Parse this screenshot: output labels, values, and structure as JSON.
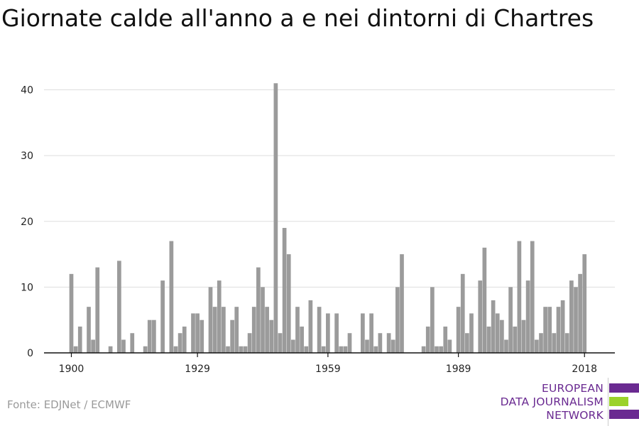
{
  "title": "Giornate calde all'anno a e nei dintorni di Chartres",
  "source": "Fonte: EDJNet / ECMWF",
  "logo": {
    "line1": "EUROPEAN",
    "line2": "DATA JOURNALISM",
    "line3": "NETWORK",
    "purple": "#6a2a91",
    "green": "#9bd22a"
  },
  "chart_data": {
    "type": "bar",
    "title": "Giornate calde all'anno a e nei dintorni di Chartres",
    "xlabel": "",
    "ylabel": "",
    "bar_color": "#9b9b9b",
    "grid": true,
    "ylim": [
      0,
      43
    ],
    "yticks": [
      0,
      10,
      20,
      30,
      40
    ],
    "xticks": [
      1900,
      1929,
      1959,
      1989,
      2018
    ],
    "x": [
      1900,
      1901,
      1902,
      1903,
      1904,
      1905,
      1906,
      1907,
      1908,
      1909,
      1910,
      1911,
      1912,
      1913,
      1914,
      1915,
      1916,
      1917,
      1918,
      1919,
      1920,
      1921,
      1922,
      1923,
      1924,
      1925,
      1926,
      1927,
      1928,
      1929,
      1930,
      1931,
      1932,
      1933,
      1934,
      1935,
      1936,
      1937,
      1938,
      1939,
      1940,
      1941,
      1942,
      1943,
      1944,
      1945,
      1946,
      1947,
      1948,
      1949,
      1950,
      1951,
      1952,
      1953,
      1954,
      1955,
      1956,
      1957,
      1958,
      1959,
      1960,
      1961,
      1962,
      1963,
      1964,
      1965,
      1966,
      1967,
      1968,
      1969,
      1970,
      1971,
      1972,
      1973,
      1974,
      1975,
      1976,
      1977,
      1978,
      1979,
      1980,
      1981,
      1982,
      1983,
      1984,
      1985,
      1986,
      1987,
      1988,
      1989,
      1990,
      1991,
      1992,
      1993,
      1994,
      1995,
      1996,
      1997,
      1998,
      1999,
      2000,
      2001,
      2002,
      2003,
      2004,
      2005,
      2006,
      2007,
      2008,
      2009,
      2010,
      2011,
      2012,
      2013,
      2014,
      2015,
      2016,
      2017,
      2018
    ],
    "values": [
      12,
      1,
      4,
      0,
      7,
      2,
      13,
      0,
      0,
      1,
      0,
      14,
      2,
      0,
      3,
      0,
      0,
      1,
      5,
      5,
      0,
      11,
      0,
      17,
      1,
      3,
      4,
      0,
      6,
      6,
      5,
      0,
      10,
      7,
      11,
      7,
      1,
      5,
      7,
      1,
      1,
      3,
      7,
      13,
      10,
      7,
      5,
      41,
      3,
      19,
      15,
      2,
      7,
      4,
      1,
      8,
      0,
      7,
      1,
      6,
      0,
      6,
      1,
      1,
      3,
      0,
      0,
      6,
      2,
      6,
      1,
      3,
      0,
      3,
      2,
      10,
      15,
      0,
      0,
      0,
      0,
      1,
      4,
      10,
      1,
      1,
      4,
      2,
      0,
      7,
      12,
      3,
      6,
      0,
      11,
      16,
      4,
      8,
      6,
      5,
      2,
      10,
      4,
      17,
      5,
      11,
      17,
      2,
      3,
      7,
      7,
      3,
      7,
      8,
      3,
      11,
      10,
      12,
      15
    ]
  }
}
